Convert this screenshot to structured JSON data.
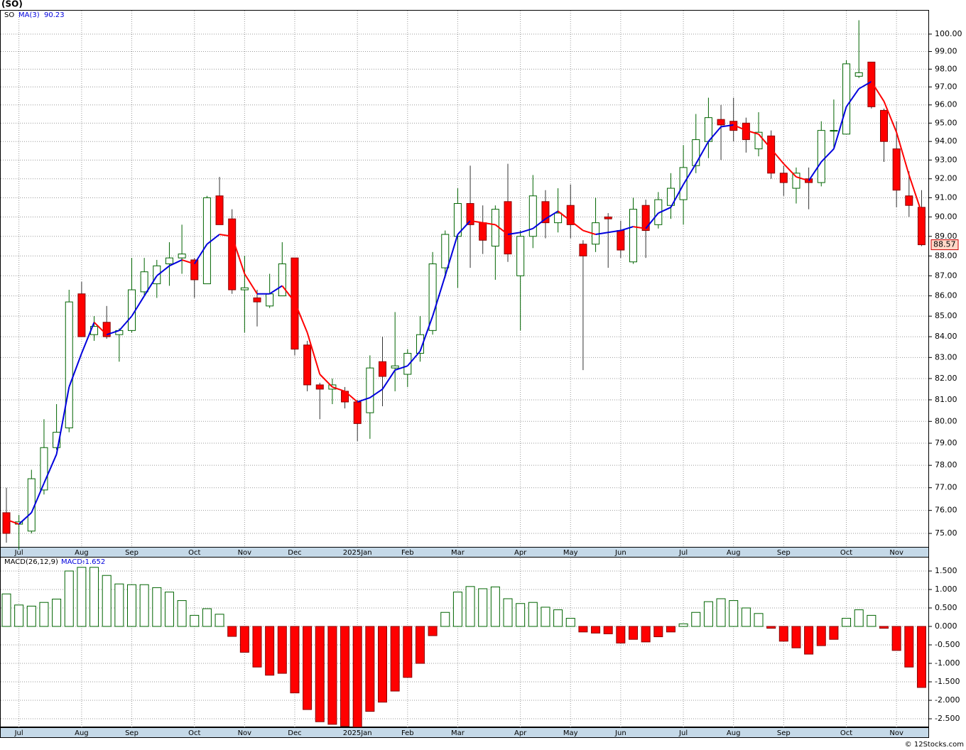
{
  "chart_data": [
    {
      "type": "candlestick",
      "title": "(SO)",
      "symbol": "SO",
      "log_scale": true,
      "grid": true,
      "up_color": "#006400",
      "down_color": "#ff0000",
      "categories": [
        null,
        "Jul",
        null,
        null,
        null,
        null,
        "Aug",
        null,
        null,
        null,
        "Sep",
        null,
        null,
        null,
        null,
        "Oct",
        null,
        null,
        null,
        "Nov",
        null,
        null,
        null,
        "Dec",
        null,
        null,
        null,
        null,
        "2025Jan",
        null,
        null,
        null,
        "Feb",
        null,
        null,
        null,
        "Mar",
        null,
        null,
        null,
        null,
        "Apr",
        null,
        null,
        null,
        "May",
        null,
        null,
        null,
        "Jun",
        null,
        null,
        null,
        null,
        "Jul",
        null,
        null,
        null,
        "Aug",
        null,
        null,
        null,
        "Sep",
        null,
        null,
        null,
        null,
        "Oct",
        null,
        null,
        null,
        "Nov",
        null,
        null
      ],
      "open": [
        75.9,
        75.4,
        75.1,
        76.9,
        78.8,
        79.7,
        86.1,
        84.1,
        84.7,
        84.1,
        84.3,
        86.2,
        86.6,
        87.6,
        87.9,
        87.8,
        86.6,
        91.1,
        89.9,
        86.3,
        85.9,
        85.5,
        86.0,
        87.9,
        83.6,
        81.7,
        81.5,
        81.4,
        80.9,
        80.4,
        82.8,
        82.5,
        82.2,
        83.2,
        84.3,
        87.4,
        89.0,
        90.7,
        89.7,
        88.5,
        90.8,
        87.0,
        89.0,
        90.8,
        89.7,
        90.6,
        88.6,
        88.6,
        90.0,
        89.3,
        87.7,
        90.6,
        89.6,
        90.6,
        90.9,
        92.7,
        94.0,
        95.2,
        95.1,
        95.0,
        93.6,
        94.3,
        92.3,
        91.5,
        92.0,
        91.8,
        94.6,
        94.4,
        97.6,
        98.4,
        95.7,
        93.6,
        91.1,
        90.5
      ],
      "high": [
        77.0,
        75.8,
        77.8,
        80.1,
        80.8,
        86.3,
        86.7,
        85.0,
        85.5,
        84.4,
        87.9,
        87.9,
        87.8,
        88.7,
        89.6,
        87.9,
        91.1,
        92.1,
        90.4,
        88.0,
        86.3,
        87.1,
        88.7,
        87.9,
        83.8,
        81.8,
        82.0,
        81.6,
        81.0,
        83.1,
        84.0,
        85.2,
        83.4,
        85.0,
        88.2,
        89.3,
        91.5,
        92.7,
        90.6,
        90.6,
        92.8,
        89.3,
        92.2,
        91.4,
        91.5,
        91.7,
        88.8,
        91.0,
        90.2,
        89.8,
        91.0,
        90.9,
        91.3,
        92.3,
        93.8,
        95.5,
        96.4,
        96.0,
        96.4,
        95.3,
        95.6,
        94.6,
        92.7,
        92.6,
        92.6,
        95.1,
        96.3,
        98.5,
        100.8,
        98.4,
        95.8,
        95.1,
        92.4,
        91.4
      ],
      "low": [
        74.6,
        74.3,
        75.0,
        76.7,
        78.7,
        79.5,
        84.0,
        83.8,
        83.9,
        82.8,
        84.2,
        86.0,
        85.9,
        86.5,
        87.1,
        85.9,
        86.6,
        89.6,
        86.1,
        84.2,
        84.5,
        85.4,
        86.0,
        83.1,
        81.4,
        80.1,
        80.8,
        80.6,
        79.1,
        79.2,
        80.7,
        81.4,
        81.6,
        82.8,
        84.1,
        86.9,
        86.4,
        87.4,
        88.1,
        86.8,
        87.7,
        84.3,
        88.4,
        88.9,
        89.2,
        88.9,
        82.4,
        88.2,
        87.4,
        87.9,
        87.6,
        87.9,
        89.4,
        89.9,
        89.6,
        92.3,
        93.1,
        93.0,
        94.0,
        93.4,
        93.2,
        92.0,
        91.1,
        90.7,
        90.4,
        91.6,
        93.6,
        94.4,
        97.5,
        95.8,
        92.9,
        90.5,
        90.0,
        88.5
      ],
      "close": [
        75.0,
        75.5,
        77.4,
        78.8,
        79.5,
        85.7,
        84.0,
        84.5,
        84.0,
        84.3,
        86.3,
        87.2,
        87.5,
        87.9,
        88.1,
        86.8,
        91.0,
        89.6,
        86.3,
        86.4,
        85.7,
        86.1,
        87.6,
        83.4,
        81.7,
        81.5,
        81.7,
        80.9,
        79.9,
        82.5,
        82.1,
        82.6,
        83.2,
        84.1,
        87.6,
        89.1,
        90.7,
        89.6,
        88.8,
        90.4,
        88.1,
        89.0,
        91.1,
        89.7,
        90.2,
        89.6,
        88.0,
        89.7,
        89.9,
        88.3,
        90.4,
        89.3,
        90.9,
        91.5,
        92.6,
        94.1,
        95.3,
        94.9,
        94.6,
        94.1,
        94.5,
        92.3,
        91.8,
        92.3,
        91.8,
        94.6,
        94.6,
        98.3,
        97.8,
        95.9,
        94.0,
        91.4,
        90.6,
        88.57
      ],
      "ma": {
        "name": "MA(3)",
        "up_color": "#0000dd",
        "down_color": "#ff0000",
        "values": [
          75.6,
          75.4,
          75.9,
          77.2,
          78.5,
          81.6,
          83.2,
          84.7,
          84.1,
          84.3,
          85.0,
          86.0,
          87.0,
          87.5,
          87.8,
          87.6,
          88.6,
          89.1,
          89.0,
          87.1,
          86.1,
          86.1,
          86.5,
          85.7,
          84.2,
          82.2,
          81.6,
          81.4,
          80.9,
          81.1,
          81.5,
          82.4,
          82.6,
          83.3,
          85.0,
          87.0,
          89.1,
          89.8,
          89.7,
          89.6,
          89.1,
          89.2,
          89.4,
          89.9,
          90.3,
          89.8,
          89.3,
          89.1,
          89.2,
          89.3,
          89.5,
          89.4,
          90.2,
          90.5,
          91.7,
          92.8,
          94.0,
          94.8,
          94.9,
          94.6,
          94.4,
          93.6,
          92.8,
          92.1,
          91.9,
          92.9,
          93.6,
          95.9,
          96.9,
          97.3,
          96.2,
          94.5,
          92.2,
          90.23
        ]
      },
      "ylim": [
        74.42,
        101.4
      ],
      "yticks": [
        {
          "value": 75,
          "label": "75.00"
        },
        {
          "value": 76,
          "label": "76.00"
        },
        {
          "value": 77,
          "label": "77.00"
        },
        {
          "value": 78,
          "label": "78.00"
        },
        {
          "value": 79,
          "label": "79.00"
        },
        {
          "value": 80,
          "label": "80.00"
        },
        {
          "value": 81,
          "label": "81.00"
        },
        {
          "value": 82,
          "label": "82.00"
        },
        {
          "value": 83,
          "label": "83.00"
        },
        {
          "value": 84,
          "label": "84.00"
        },
        {
          "value": 85,
          "label": "85.00"
        },
        {
          "value": 86,
          "label": "86.00"
        },
        {
          "value": 87,
          "label": "87.00"
        },
        {
          "value": 88,
          "label": "88.00"
        },
        {
          "value": 89,
          "label": "89.00"
        },
        {
          "value": 90,
          "label": "90.00"
        },
        {
          "value": 91,
          "label": "91.00"
        },
        {
          "value": 92,
          "label": "92.00"
        },
        {
          "value": 93,
          "label": "93.00"
        },
        {
          "value": 94,
          "label": "94.00"
        },
        {
          "value": 95,
          "label": "95.00"
        },
        {
          "value": 96,
          "label": "96.00"
        },
        {
          "value": 97,
          "label": "97.00"
        },
        {
          "value": 98,
          "label": "98.00"
        },
        {
          "value": 99,
          "label": "99.00"
        },
        {
          "value": 100,
          "label": "100.00"
        }
      ]
    },
    {
      "type": "bar",
      "title": "MACD(26,12,9)",
      "grid": true,
      "categories": [
        null,
        "Jul",
        null,
        null,
        null,
        null,
        "Aug",
        null,
        null,
        null,
        "Sep",
        null,
        null,
        null,
        null,
        "Oct",
        null,
        null,
        null,
        "Nov",
        null,
        null,
        null,
        "Dec",
        null,
        null,
        null,
        null,
        "2025Jan",
        null,
        null,
        null,
        "Feb",
        null,
        null,
        null,
        "Mar",
        null,
        null,
        null,
        null,
        "Apr",
        null,
        null,
        null,
        "May",
        null,
        null,
        null,
        "Jun",
        null,
        null,
        null,
        null,
        "Jul",
        null,
        null,
        null,
        "Aug",
        null,
        null,
        null,
        "Sep",
        null,
        null,
        null,
        null,
        "Oct",
        null,
        null,
        null,
        "Nov",
        null,
        null
      ],
      "series": [
        {
          "name": "MACD:",
          "up_color": "#006400",
          "down_color": "#ff0000",
          "values": [
            0.88,
            0.58,
            0.55,
            0.65,
            0.74,
            1.5,
            1.6,
            1.6,
            1.38,
            1.15,
            1.13,
            1.13,
            1.05,
            0.93,
            0.7,
            0.3,
            0.48,
            0.33,
            -0.27,
            -0.7,
            -1.1,
            -1.32,
            -1.27,
            -1.8,
            -2.25,
            -2.58,
            -2.65,
            -2.7,
            -2.72,
            -2.3,
            -2.05,
            -1.75,
            -1.38,
            -1.0,
            -0.25,
            0.38,
            0.93,
            1.08,
            1.02,
            1.07,
            0.75,
            0.62,
            0.65,
            0.52,
            0.45,
            0.22,
            -0.15,
            -0.18,
            -0.2,
            -0.45,
            -0.35,
            -0.42,
            -0.28,
            -0.15,
            0.07,
            0.38,
            0.67,
            0.75,
            0.7,
            0.5,
            0.35,
            -0.05,
            -0.4,
            -0.58,
            -0.75,
            -0.52,
            -0.35,
            0.22,
            0.45,
            0.3,
            -0.05,
            -0.65,
            -1.1,
            -1.652
          ]
        }
      ],
      "ylim": [
        -2.73,
        1.865
      ],
      "yticks": [
        {
          "value": 1.5,
          "label": "1.500"
        },
        {
          "value": 1,
          "label": "1.000"
        },
        {
          "value": 0.5,
          "label": "0.500"
        },
        {
          "value": 0,
          "label": "0.000"
        },
        {
          "value": -0.5,
          "label": "-0.500"
        },
        {
          "value": -1,
          "label": "-1.000"
        },
        {
          "value": -1.5,
          "label": "-1.500"
        },
        {
          "value": -2,
          "label": "-2.000"
        },
        {
          "value": -2.5,
          "label": "-2.500"
        }
      ]
    }
  ],
  "footer": "© 12Stocks.com"
}
